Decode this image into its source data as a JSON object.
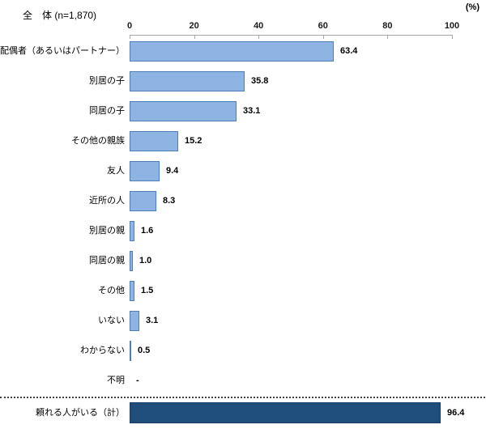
{
  "header": {
    "group_label": "全　体 (n=1,870)",
    "unit_label": "(%)"
  },
  "chart_data": {
    "type": "bar",
    "orientation": "horizontal",
    "title": "",
    "xlabel": "(%)",
    "ylabel": "",
    "xlim": [
      0,
      100
    ],
    "x_ticks": [
      0,
      20,
      40,
      60,
      80,
      100
    ],
    "grid": false,
    "legend": false,
    "categories": [
      "配偶者（あるいはパートナー）",
      "別居の子",
      "同居の子",
      "その他の親族",
      "友人",
      "近所の人",
      "別居の親",
      "同居の親",
      "その他",
      "いない",
      "わからない",
      "不明"
    ],
    "values": [
      63.4,
      35.8,
      33.1,
      15.2,
      9.4,
      8.3,
      1.6,
      1.0,
      1.5,
      3.1,
      0.5,
      null
    ],
    "value_labels": [
      "63.4",
      "35.8",
      "33.1",
      "15.2",
      "9.4",
      "8.3",
      "1.6",
      "1.0",
      "1.5",
      "3.1",
      "0.5",
      "-"
    ],
    "total": {
      "label": "頼れる人がいる（計）",
      "value": 96.4,
      "value_label": "96.4"
    },
    "colors": {
      "bar_fill": "#8DB4E2",
      "bar_border": "#4E7DB5",
      "total_fill": "#1F4E7C",
      "total_border": "#1A3E63",
      "axis_line": "#A6A6A6",
      "separator": "#404040",
      "text": "#000000"
    }
  }
}
